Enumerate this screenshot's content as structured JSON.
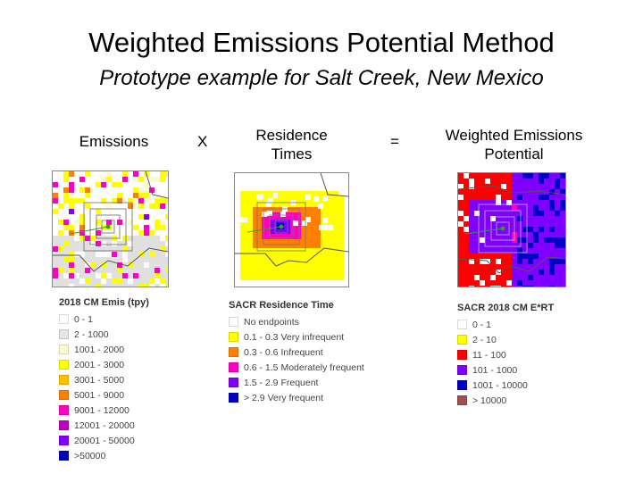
{
  "title": "Weighted Emissions Potential Method",
  "subtitle": "Prototype example for Salt Creek, New Mexico",
  "columns": [
    {
      "label": "Emissions"
    },
    {
      "label": "Residence\nTimes"
    },
    {
      "label": "Weighted Emissions\nPotential"
    }
  ],
  "operators": [
    "X",
    "="
  ],
  "legends": {
    "emissions": {
      "title": "2018 CM Emis (tpy)",
      "items": [
        {
          "label": "0 - 1",
          "color": "#ffffff"
        },
        {
          "label": "2 - 1000",
          "color": "#e6e6e6"
        },
        {
          "label": "1001 - 2000",
          "color": "#fafad2"
        },
        {
          "label": "2001 - 3000",
          "color": "#ffff00"
        },
        {
          "label": "3001 - 5000",
          "color": "#ffc000"
        },
        {
          "label": "5001 - 9000",
          "color": "#ff8000"
        },
        {
          "label": "9001 - 12000",
          "color": "#ff00c0"
        },
        {
          "label": "12001 - 20000",
          "color": "#c000c0"
        },
        {
          "label": "20001 - 50000",
          "color": "#8000ff"
        },
        {
          "label": ">50000",
          "color": "#0000c0"
        }
      ]
    },
    "residence": {
      "title": "SACR Residence Time",
      "items": [
        {
          "label": "No endpoints",
          "color": "#ffffff"
        },
        {
          "label": "0.1 - 0.3 Very infrequent",
          "color": "#ffff00"
        },
        {
          "label": "0.3 - 0.6 Infrequent",
          "color": "#ff8000"
        },
        {
          "label": "0.6 - 1.5 Moderately frequent",
          "color": "#ff00c0"
        },
        {
          "label": "1.5 - 2.9 Frequent",
          "color": "#8000ff"
        },
        {
          "label": "> 2.9 Very frequent",
          "color": "#0000c0"
        }
      ]
    },
    "weighted": {
      "title": "SACR 2018 CM E*RT",
      "items": [
        {
          "label": "0 - 1",
          "color": "#ffffff"
        },
        {
          "label": "2 - 10",
          "color": "#ffff00"
        },
        {
          "label": "11 - 100",
          "color": "#ff0000"
        },
        {
          "label": "101 - 1000",
          "color": "#8000ff"
        },
        {
          "label": "1001 - 10000",
          "color": "#0000c0"
        },
        {
          "label": "> 10000",
          "color": "#a05050"
        }
      ]
    }
  },
  "colors": {
    "map_gray": "#e0e0e0",
    "map_yellow": "#ffff00",
    "map_orange": "#ff8000",
    "map_magenta": "#ff00c0",
    "map_purple": "#8000ff",
    "map_blue": "#0000c0",
    "map_red": "#ff0000",
    "map_green": "#2ca02c"
  }
}
